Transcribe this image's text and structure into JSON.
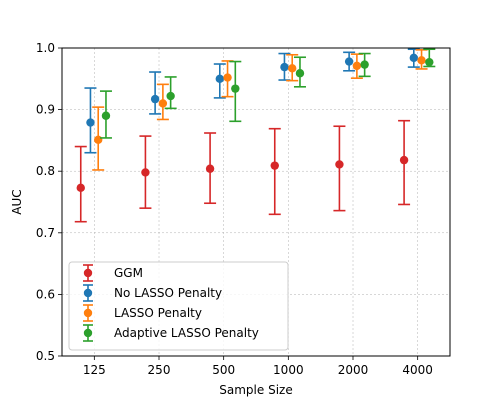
{
  "chart_data": {
    "type": "scatter",
    "subtype": "errorbar",
    "xlabel": "Sample Size",
    "ylabel": "AUC",
    "categories": [
      "125",
      "250",
      "500",
      "1000",
      "2000",
      "4000"
    ],
    "ylim": [
      0.5,
      1.0
    ],
    "yticks": [
      "0.5",
      "0.6",
      "0.7",
      "0.8",
      "0.9",
      "1.0"
    ],
    "grid": true,
    "legend_position": "lower-left",
    "series": [
      {
        "name": "GGM",
        "color": "#d62728",
        "values": [
          0.773,
          0.798,
          0.804,
          0.809,
          0.811,
          0.818
        ],
        "lower": [
          0.718,
          0.74,
          0.748,
          0.73,
          0.736,
          0.746
        ],
        "upper": [
          0.84,
          0.857,
          0.862,
          0.869,
          0.873,
          0.882
        ]
      },
      {
        "name": "No LASSO Penalty",
        "color": "#1f77b4",
        "values": [
          0.879,
          0.917,
          0.95,
          0.969,
          0.978,
          0.984
        ],
        "lower": [
          0.83,
          0.893,
          0.919,
          0.948,
          0.963,
          0.969
        ],
        "upper": [
          0.935,
          0.961,
          0.974,
          0.991,
          0.993,
          0.998
        ]
      },
      {
        "name": "LASSO Penalty",
        "color": "#ff7f0e",
        "values": [
          0.851,
          0.91,
          0.952,
          0.967,
          0.971,
          0.98
        ],
        "lower": [
          0.802,
          0.884,
          0.921,
          0.947,
          0.951,
          0.966
        ],
        "upper": [
          0.904,
          0.941,
          0.979,
          0.989,
          0.99,
          0.997
        ]
      },
      {
        "name": "Adaptive LASSO Penalty",
        "color": "#2ca02c",
        "values": [
          0.89,
          0.922,
          0.934,
          0.959,
          0.973,
          0.977
        ],
        "lower": [
          0.854,
          0.902,
          0.881,
          0.937,
          0.954,
          0.97
        ],
        "upper": [
          0.93,
          0.953,
          0.978,
          0.985,
          0.991,
          0.998
        ]
      }
    ]
  }
}
